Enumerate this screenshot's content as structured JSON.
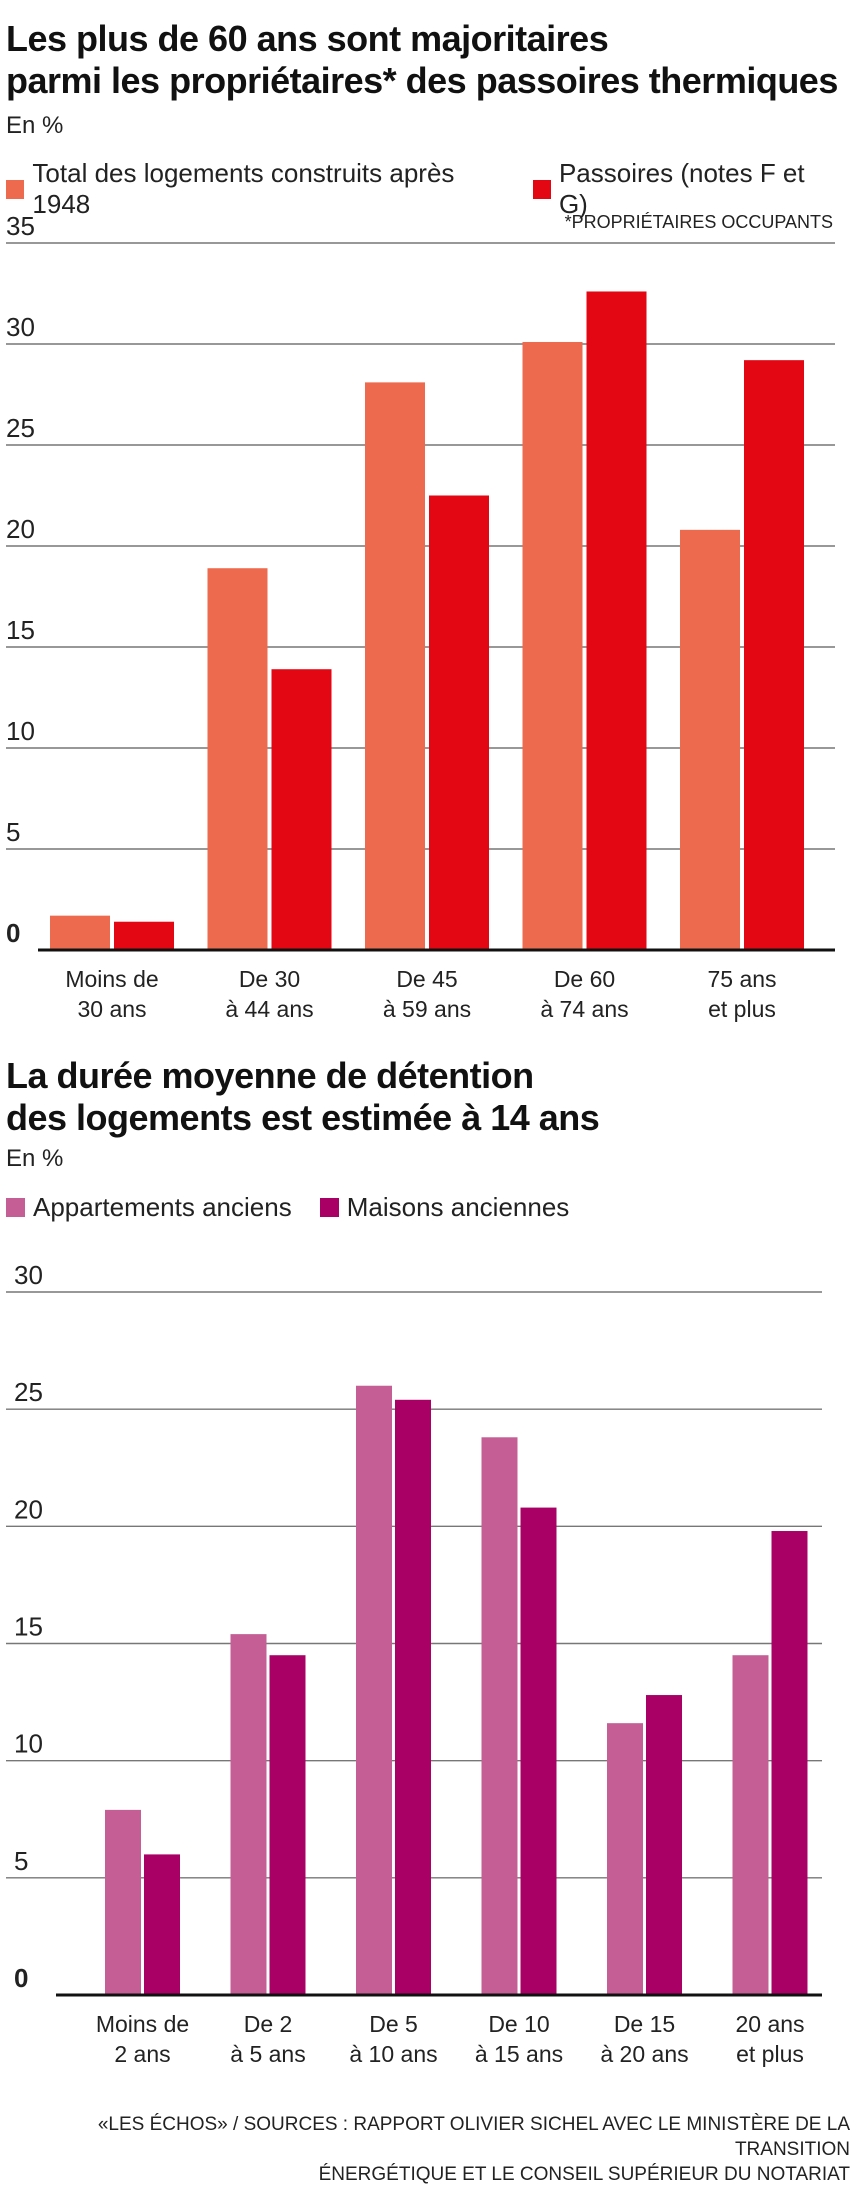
{
  "chart_data": [
    {
      "type": "bar",
      "title": [
        "Les plus de 60 ans sont majoritaires",
        "parmi les propriétaires* des passoires thermiques"
      ],
      "unit": "En %",
      "note": "*PROPRIÉTAIRES OCCUPANTS",
      "categories": [
        [
          "Moins de",
          "30 ans"
        ],
        [
          "De 30",
          "à 44 ans"
        ],
        [
          "De 45",
          "à 59 ans"
        ],
        [
          "De 60",
          "à 74 ans"
        ],
        [
          "75 ans",
          "et plus"
        ]
      ],
      "series": [
        {
          "name": "Total des logements construits après 1948",
          "color": "#ee6a4e",
          "values": [
            1.7,
            18.9,
            28.1,
            30.1,
            20.8
          ]
        },
        {
          "name": "Passoires (notes F et G)",
          "color": "#e30613",
          "values": [
            1.4,
            13.9,
            22.5,
            32.6,
            29.2
          ]
        }
      ],
      "ylim": [
        0,
        35
      ],
      "yticks": [
        "0",
        "5",
        "10",
        "15",
        "20",
        "25",
        "30",
        "35"
      ],
      "grid": true,
      "legend": "top-left"
    },
    {
      "type": "bar",
      "title": [
        "La durée moyenne de détention",
        "des logements est estimée à 14 ans"
      ],
      "unit": "En %",
      "categories": [
        [
          "Moins de",
          "2 ans"
        ],
        [
          "De 2",
          "à 5 ans"
        ],
        [
          "De 5",
          "à 10 ans"
        ],
        [
          "De 10",
          "à 15 ans"
        ],
        [
          "De 15",
          "à 20 ans"
        ],
        [
          "20 ans",
          "et plus"
        ]
      ],
      "series": [
        {
          "name": "Appartements anciens",
          "color": "#c45e94",
          "values": [
            7.9,
            15.4,
            26.0,
            23.8,
            11.6,
            14.5
          ]
        },
        {
          "name": "Maisons anciennes",
          "color": "#a80065",
          "values": [
            6.0,
            14.5,
            25.4,
            20.8,
            12.8,
            19.8
          ]
        }
      ],
      "ylim": [
        0,
        30
      ],
      "yticks": [
        "0",
        "5",
        "10",
        "15",
        "20",
        "25",
        "30"
      ],
      "grid": true,
      "legend": "top-left"
    }
  ],
  "source": [
    "«LES ÉCHOS» / SOURCES : RAPPORT OLIVIER SICHEL AVEC LE MINISTÈRE DE LA TRANSITION",
    "ÉNERGÉTIQUE ET LE CONSEIL SUPÉRIEUR DU NOTARIAT"
  ]
}
